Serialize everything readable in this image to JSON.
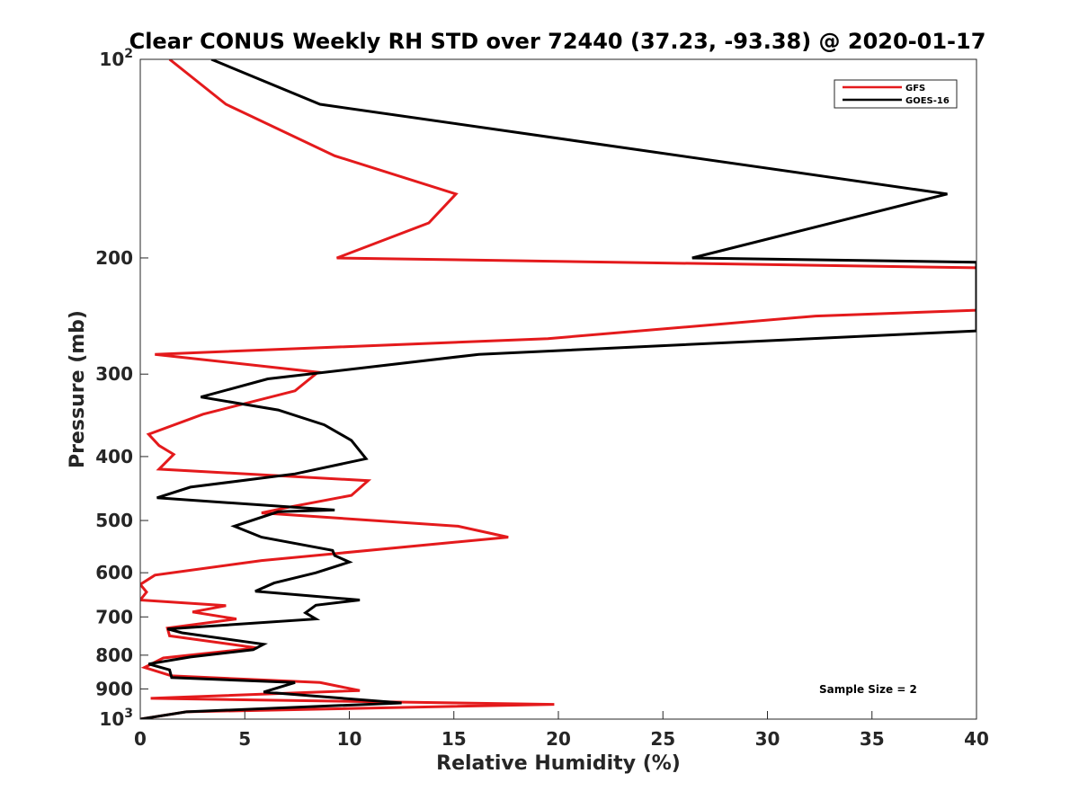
{
  "chart_data": {
    "type": "line",
    "title": "Clear CONUS Weekly RH STD over 72440 (37.23, -93.38) @ 2020-01-17",
    "xlabel": "Relative Humidity (%)",
    "ylabel": "Pressure (mb)",
    "xlim": [
      0,
      40
    ],
    "ylim": [
      100,
      1000
    ],
    "yscale": "log",
    "y_reversed": true,
    "grid": false,
    "legend_position": "top-right",
    "annotation": "Sample Size = 2",
    "x_ticks": [
      0,
      5,
      10,
      15,
      20,
      25,
      30,
      35,
      40
    ],
    "x_tick_labels": [
      "0",
      "5",
      "10",
      "15",
      "20",
      "25",
      "30",
      "35",
      "40"
    ],
    "y_ticks": [
      100,
      200,
      300,
      400,
      500,
      600,
      700,
      800,
      900,
      1000
    ],
    "y_tick_labels": [
      {
        "base": "10",
        "exp": "2"
      },
      {
        "base": "200",
        "exp": ""
      },
      {
        "base": "300",
        "exp": ""
      },
      {
        "base": "400",
        "exp": ""
      },
      {
        "base": "500",
        "exp": ""
      },
      {
        "base": "600",
        "exp": ""
      },
      {
        "base": "700",
        "exp": ""
      },
      {
        "base": "800",
        "exp": ""
      },
      {
        "base": "900",
        "exp": ""
      },
      {
        "base": "10",
        "exp": "3"
      }
    ],
    "series": [
      {
        "name": "GFS",
        "color": "#e41a1c",
        "x": [
          1.4,
          4.1,
          9.3,
          15.1,
          13.8,
          9.4,
          40,
          40,
          32.3,
          19.5,
          0.7,
          8.5,
          7.4,
          3.0,
          0.4,
          0.9,
          1.6,
          0.9,
          10.9,
          10.1,
          7.0,
          5.8,
          15.2,
          17.6,
          5.8,
          0.7,
          0.0,
          0.3,
          0.0,
          4.1,
          2.5,
          4.6,
          1.3,
          1.4,
          5.6,
          1.1,
          0.2,
          1.5,
          8.6,
          10.5,
          0.5,
          19.8,
          2.2,
          0.0
        ],
        "y": [
          100,
          117,
          140,
          160,
          177,
          200,
          207,
          240,
          245,
          265,
          280,
          298,
          318,
          345,
          370,
          385,
          397,
          418,
          435,
          458,
          478,
          487,
          510,
          530,
          575,
          605,
          625,
          642,
          660,
          673,
          688,
          705,
          728,
          748,
          780,
          808,
          835,
          860,
          880,
          905,
          930,
          950,
          975,
          1000
        ]
      },
      {
        "name": "GOES-16",
        "color": "#000000",
        "x": [
          3.4,
          8.6,
          38.6,
          26.4,
          40,
          40,
          16.2,
          6.1,
          2.9,
          6.6,
          8.8,
          10.1,
          10.8,
          7.4,
          2.4,
          0.8,
          9.3,
          6.6,
          4.5,
          5.8,
          9.2,
          9.3,
          10.0,
          8.4,
          6.4,
          5.5,
          10.5,
          8.4,
          7.9,
          8.4,
          1.3,
          2.0,
          5.9,
          5.4,
          2.4,
          0.4,
          1.4,
          1.5,
          7.4,
          5.9,
          12.5,
          2.2,
          0.0
        ],
        "y": [
          100,
          117,
          160,
          200,
          203,
          258,
          280,
          305,
          325,
          340,
          358,
          378,
          403,
          425,
          445,
          462,
          482,
          485,
          510,
          530,
          555,
          565,
          578,
          600,
          622,
          640,
          660,
          672,
          690,
          705,
          730,
          740,
          770,
          785,
          805,
          825,
          842,
          865,
          880,
          910,
          945,
          975,
          1000
        ]
      }
    ]
  }
}
